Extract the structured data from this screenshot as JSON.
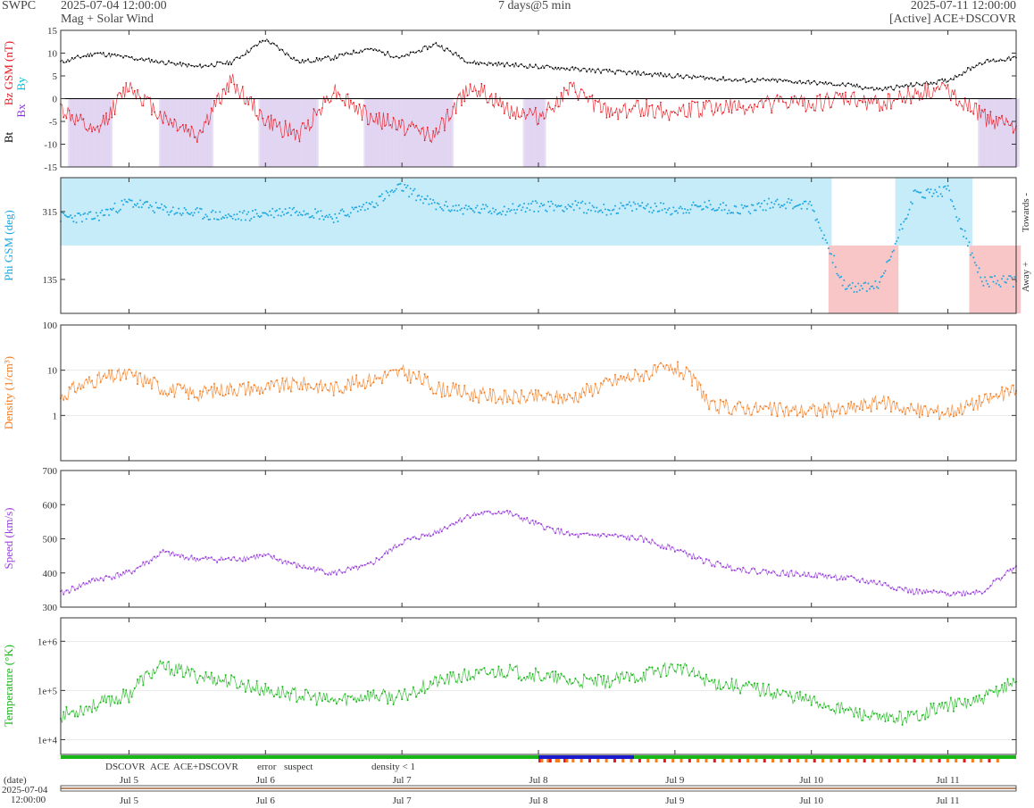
{
  "header": {
    "org": "SWPC",
    "start": "2025-07-04 12:00:00",
    "end": "2025-07-11 12:00:00",
    "subtitle": "Mag + Solar Wind",
    "span": "7 days@5 min",
    "source": "[Active] ACE+DSCOVR"
  },
  "colors": {
    "bt": "#000000",
    "bz": "#e8161e",
    "bx": "#8a2be2",
    "by": "#00bcd4",
    "phi": "#1ea7e0",
    "phi_toward": "#c6ecfa",
    "phi_away": "#f8c6c6",
    "bz_south": "#ddd0f0",
    "density": "#f57c1f",
    "speed": "#9b3fe0",
    "temp": "#18b818",
    "dscovr": "#1a1acc",
    "ace": "#18b818",
    "ace_dscovr": "#e020c0",
    "error": "#e8161e",
    "suspect": "#e0b000",
    "density_lt1": "#f57c1f"
  },
  "chart_data": [
    {
      "type": "line",
      "panel": "mag",
      "ylabel": [
        "Bt",
        "Bz GSM (nT)",
        "Bx",
        "By"
      ],
      "ylim": [
        -15,
        15
      ],
      "yticks": [
        -15,
        -10,
        -5,
        0,
        5,
        10,
        15
      ],
      "series": [
        {
          "name": "Bt",
          "x": [
            0,
            0.25,
            0.5,
            0.75,
            1,
            1.25,
            1.5,
            1.75,
            2,
            2.25,
            2.5,
            2.75,
            3,
            3.25,
            3.5,
            3.75,
            4,
            4.25,
            4.5,
            4.75,
            5,
            5.25,
            5.5,
            5.75,
            6,
            6.25,
            6.5,
            6.75,
            7
          ],
          "values": [
            8,
            10,
            9,
            8,
            7,
            8,
            13,
            8,
            9,
            11,
            9,
            12,
            8,
            7.5,
            7,
            6.5,
            6,
            5.5,
            5,
            4.5,
            4,
            4,
            3.5,
            3,
            2,
            3,
            4,
            8,
            9
          ]
        },
        {
          "name": "Bz",
          "x": [
            0,
            0.25,
            0.5,
            0.75,
            1,
            1.25,
            1.5,
            1.75,
            2,
            2.25,
            2.5,
            2.75,
            3,
            3.25,
            3.5,
            3.75,
            4,
            4.25,
            4.5,
            4.75,
            5,
            5.25,
            5.5,
            5.75,
            6,
            6.25,
            6.5,
            6.75,
            7
          ],
          "values": [
            -2,
            -8,
            3,
            -4,
            -8,
            4,
            -5,
            -8,
            2,
            -4,
            -6,
            -8,
            3,
            -2,
            -4,
            2,
            -3,
            -2,
            -3,
            -2,
            -2,
            -1,
            -1,
            0,
            -1,
            1,
            2,
            -4,
            -6
          ]
        }
      ]
    },
    {
      "type": "scatter",
      "panel": "phi",
      "ylabel": "Phi GSM (deg)",
      "ylim": [
        45,
        405
      ],
      "yticks": [
        135,
        315
      ],
      "right_labels": [
        "Towards -",
        "Away +"
      ],
      "x": [
        0,
        0.25,
        0.5,
        0.75,
        1,
        1.25,
        1.5,
        1.75,
        2,
        2.25,
        2.5,
        2.75,
        3,
        3.25,
        3.5,
        3.75,
        4,
        4.25,
        4.5,
        4.75,
        5,
        5.25,
        5.5,
        5.75,
        6,
        6.25,
        6.5,
        6.75,
        7
      ],
      "values": [
        300,
        300,
        340,
        320,
        310,
        300,
        310,
        320,
        300,
        330,
        380,
        330,
        320,
        320,
        330,
        330,
        320,
        330,
        320,
        330,
        320,
        340,
        330,
        110,
        120,
        360,
        370,
        130,
        130
      ]
    },
    {
      "type": "line",
      "panel": "density",
      "yscale": "log",
      "ylabel": "Density (1/cm³)",
      "ylim": [
        0.1,
        100
      ],
      "yticks": [
        1,
        10,
        100
      ],
      "x": [
        0,
        0.25,
        0.5,
        0.75,
        1,
        1.25,
        1.5,
        1.75,
        2,
        2.25,
        2.5,
        2.75,
        3,
        3.25,
        3.5,
        3.75,
        4,
        4.25,
        4.5,
        4.75,
        5,
        5.25,
        5.5,
        5.75,
        6,
        6.25,
        6.5,
        6.75,
        7
      ],
      "values": [
        2.5,
        6,
        8,
        4,
        3,
        4,
        4,
        5,
        4,
        6,
        9,
        4,
        3,
        2.5,
        2.5,
        2.5,
        5,
        8,
        11,
        1.5,
        1.5,
        1.3,
        1.3,
        1.3,
        2,
        1.3,
        1.2,
        2,
        3.5
      ]
    },
    {
      "type": "line",
      "panel": "speed",
      "ylabel": "Speed (km/s)",
      "ylim": [
        300,
        700
      ],
      "yticks": [
        300,
        400,
        500,
        600,
        700
      ],
      "x": [
        0,
        0.25,
        0.5,
        0.75,
        1,
        1.25,
        1.5,
        1.75,
        2,
        2.25,
        2.5,
        2.75,
        3,
        3.25,
        3.5,
        3.75,
        4,
        4.25,
        4.5,
        4.75,
        5,
        5.25,
        5.5,
        5.75,
        6,
        6.25,
        6.5,
        6.75,
        7
      ],
      "values": [
        340,
        380,
        400,
        460,
        440,
        440,
        450,
        420,
        400,
        420,
        490,
        520,
        570,
        580,
        540,
        510,
        510,
        500,
        470,
        430,
        410,
        400,
        395,
        385,
        370,
        345,
        340,
        345,
        420
      ]
    },
    {
      "type": "line",
      "panel": "temp",
      "yscale": "log",
      "ylabel": "Temperature (°K)",
      "ylim": [
        5000,
        3000000
      ],
      "yticks": [
        10000,
        100000,
        1000000
      ],
      "ytick_labels": [
        "1e+4",
        "1e+5",
        "1e+6"
      ],
      "x": [
        0,
        0.25,
        0.5,
        0.75,
        1,
        1.25,
        1.5,
        1.75,
        2,
        2.25,
        2.5,
        2.75,
        3,
        3.25,
        3.5,
        3.75,
        4,
        4.25,
        4.5,
        4.75,
        5,
        5.25,
        5.5,
        5.75,
        6,
        6.25,
        6.5,
        6.75,
        7
      ],
      "values": [
        30000,
        50000,
        80000,
        300000,
        200000,
        150000,
        100000,
        80000,
        60000,
        80000,
        70000,
        150000,
        200000,
        250000,
        200000,
        150000,
        150000,
        200000,
        300000,
        150000,
        120000,
        90000,
        60000,
        40000,
        25000,
        30000,
        50000,
        60000,
        150000
      ]
    }
  ],
  "x_axis": {
    "labels": [
      "Jul 5",
      "Jul 6",
      "Jul 7",
      "Jul 8",
      "Jul 9",
      "Jul 10",
      "Jul 11"
    ],
    "positions": [
      0.5,
      1.5,
      2.5,
      3.5,
      4.5,
      5.5,
      6.5
    ],
    "xlim": [
      0,
      7
    ],
    "date_label": "(date)",
    "date_start": "2025-07-04",
    "time_start": "12:00:00"
  },
  "legend": {
    "dscovr": "DSCOVR",
    "ace": "ACE",
    "ace_dscovr": "ACE+DSCOVR",
    "error": "error",
    "suspect": "suspect",
    "density_lt1": "density < 1"
  }
}
